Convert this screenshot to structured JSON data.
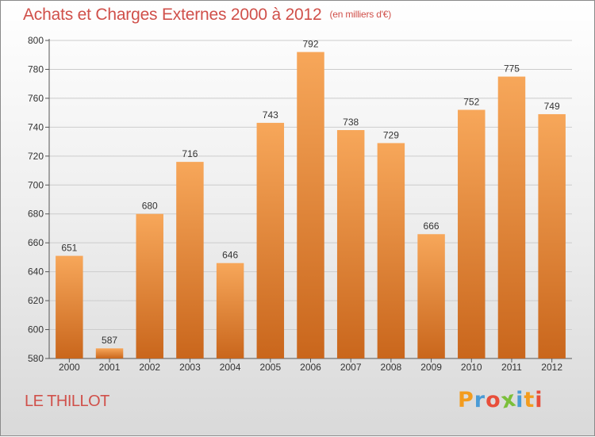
{
  "title": "Achats et Charges Externes 2000 à 2012",
  "unit_label": "(en milliers d'€)",
  "place_name": "LE THILLOT",
  "logo": {
    "text": "Proxiti",
    "letters": [
      "P",
      "r",
      "o",
      "x",
      "i",
      "t",
      "i"
    ],
    "letter_colors": [
      "#f39c1e",
      "#4a9bd6",
      "#e84e3a",
      "#7bbf3a",
      "#4a9bd6",
      "#f39c1e",
      "#e84e3a"
    ]
  },
  "colors": {
    "title": "#d0504a",
    "bar_light": "#f7a75a",
    "bar_dark": "#c9661c",
    "grid": "#cccccc",
    "axis": "#555555",
    "text": "#333333"
  },
  "chart_data": {
    "type": "bar",
    "title": "Achats et Charges Externes 2000 à 2012",
    "categories": [
      "2000",
      "2001",
      "2002",
      "2003",
      "2004",
      "2005",
      "2006",
      "2007",
      "2008",
      "2009",
      "2010",
      "2011",
      "2012"
    ],
    "values": [
      651,
      587,
      680,
      716,
      646,
      743,
      792,
      738,
      729,
      666,
      752,
      775,
      749
    ],
    "ylim": [
      580,
      800
    ],
    "yticks": [
      580,
      600,
      620,
      640,
      660,
      680,
      700,
      720,
      740,
      760,
      780,
      800
    ],
    "grid": true,
    "xlabel": "",
    "ylabel": ""
  }
}
